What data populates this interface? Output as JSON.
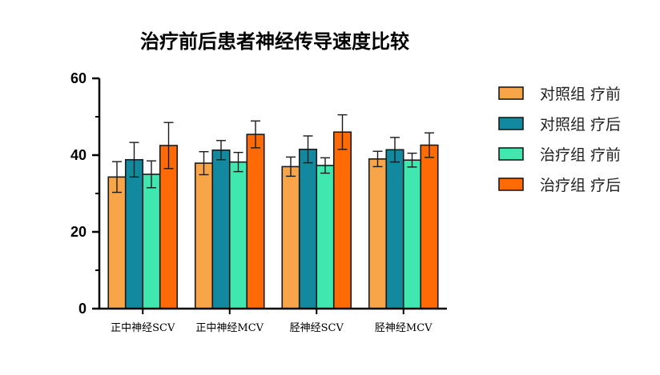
{
  "chart_data": {
    "type": "bar",
    "title": "治疗前后患者神经传导速度比较",
    "xlabel": "",
    "ylabel": "",
    "ylim": [
      0,
      60
    ],
    "yticks": [
      0,
      20,
      40,
      60
    ],
    "categories": [
      "正中神经SCV",
      "正中神经MCV",
      "胫神经SCV",
      "胫神经MCV"
    ],
    "series": [
      {
        "name": "对照组 疗前",
        "color": "#F8A54A",
        "values": [
          34.3,
          37.9,
          37.0,
          39.0
        ],
        "errors": [
          4.0,
          3.0,
          2.5,
          2.0
        ]
      },
      {
        "name": "对照组 疗后",
        "color": "#12899E",
        "values": [
          38.8,
          41.3,
          41.5,
          41.4
        ],
        "errors": [
          4.5,
          2.5,
          3.5,
          3.2
        ]
      },
      {
        "name": "治疗组 疗前",
        "color": "#40E8B0",
        "values": [
          35.0,
          38.2,
          37.3,
          38.7
        ],
        "errors": [
          3.5,
          2.5,
          2.0,
          1.8
        ]
      },
      {
        "name": "治疗组 疗后",
        "color": "#FE6A05",
        "values": [
          42.5,
          45.4,
          46.0,
          42.6
        ],
        "errors": [
          6.0,
          3.5,
          4.5,
          3.2
        ]
      }
    ],
    "legend_position": "right",
    "grid": false,
    "error_bars": true
  }
}
